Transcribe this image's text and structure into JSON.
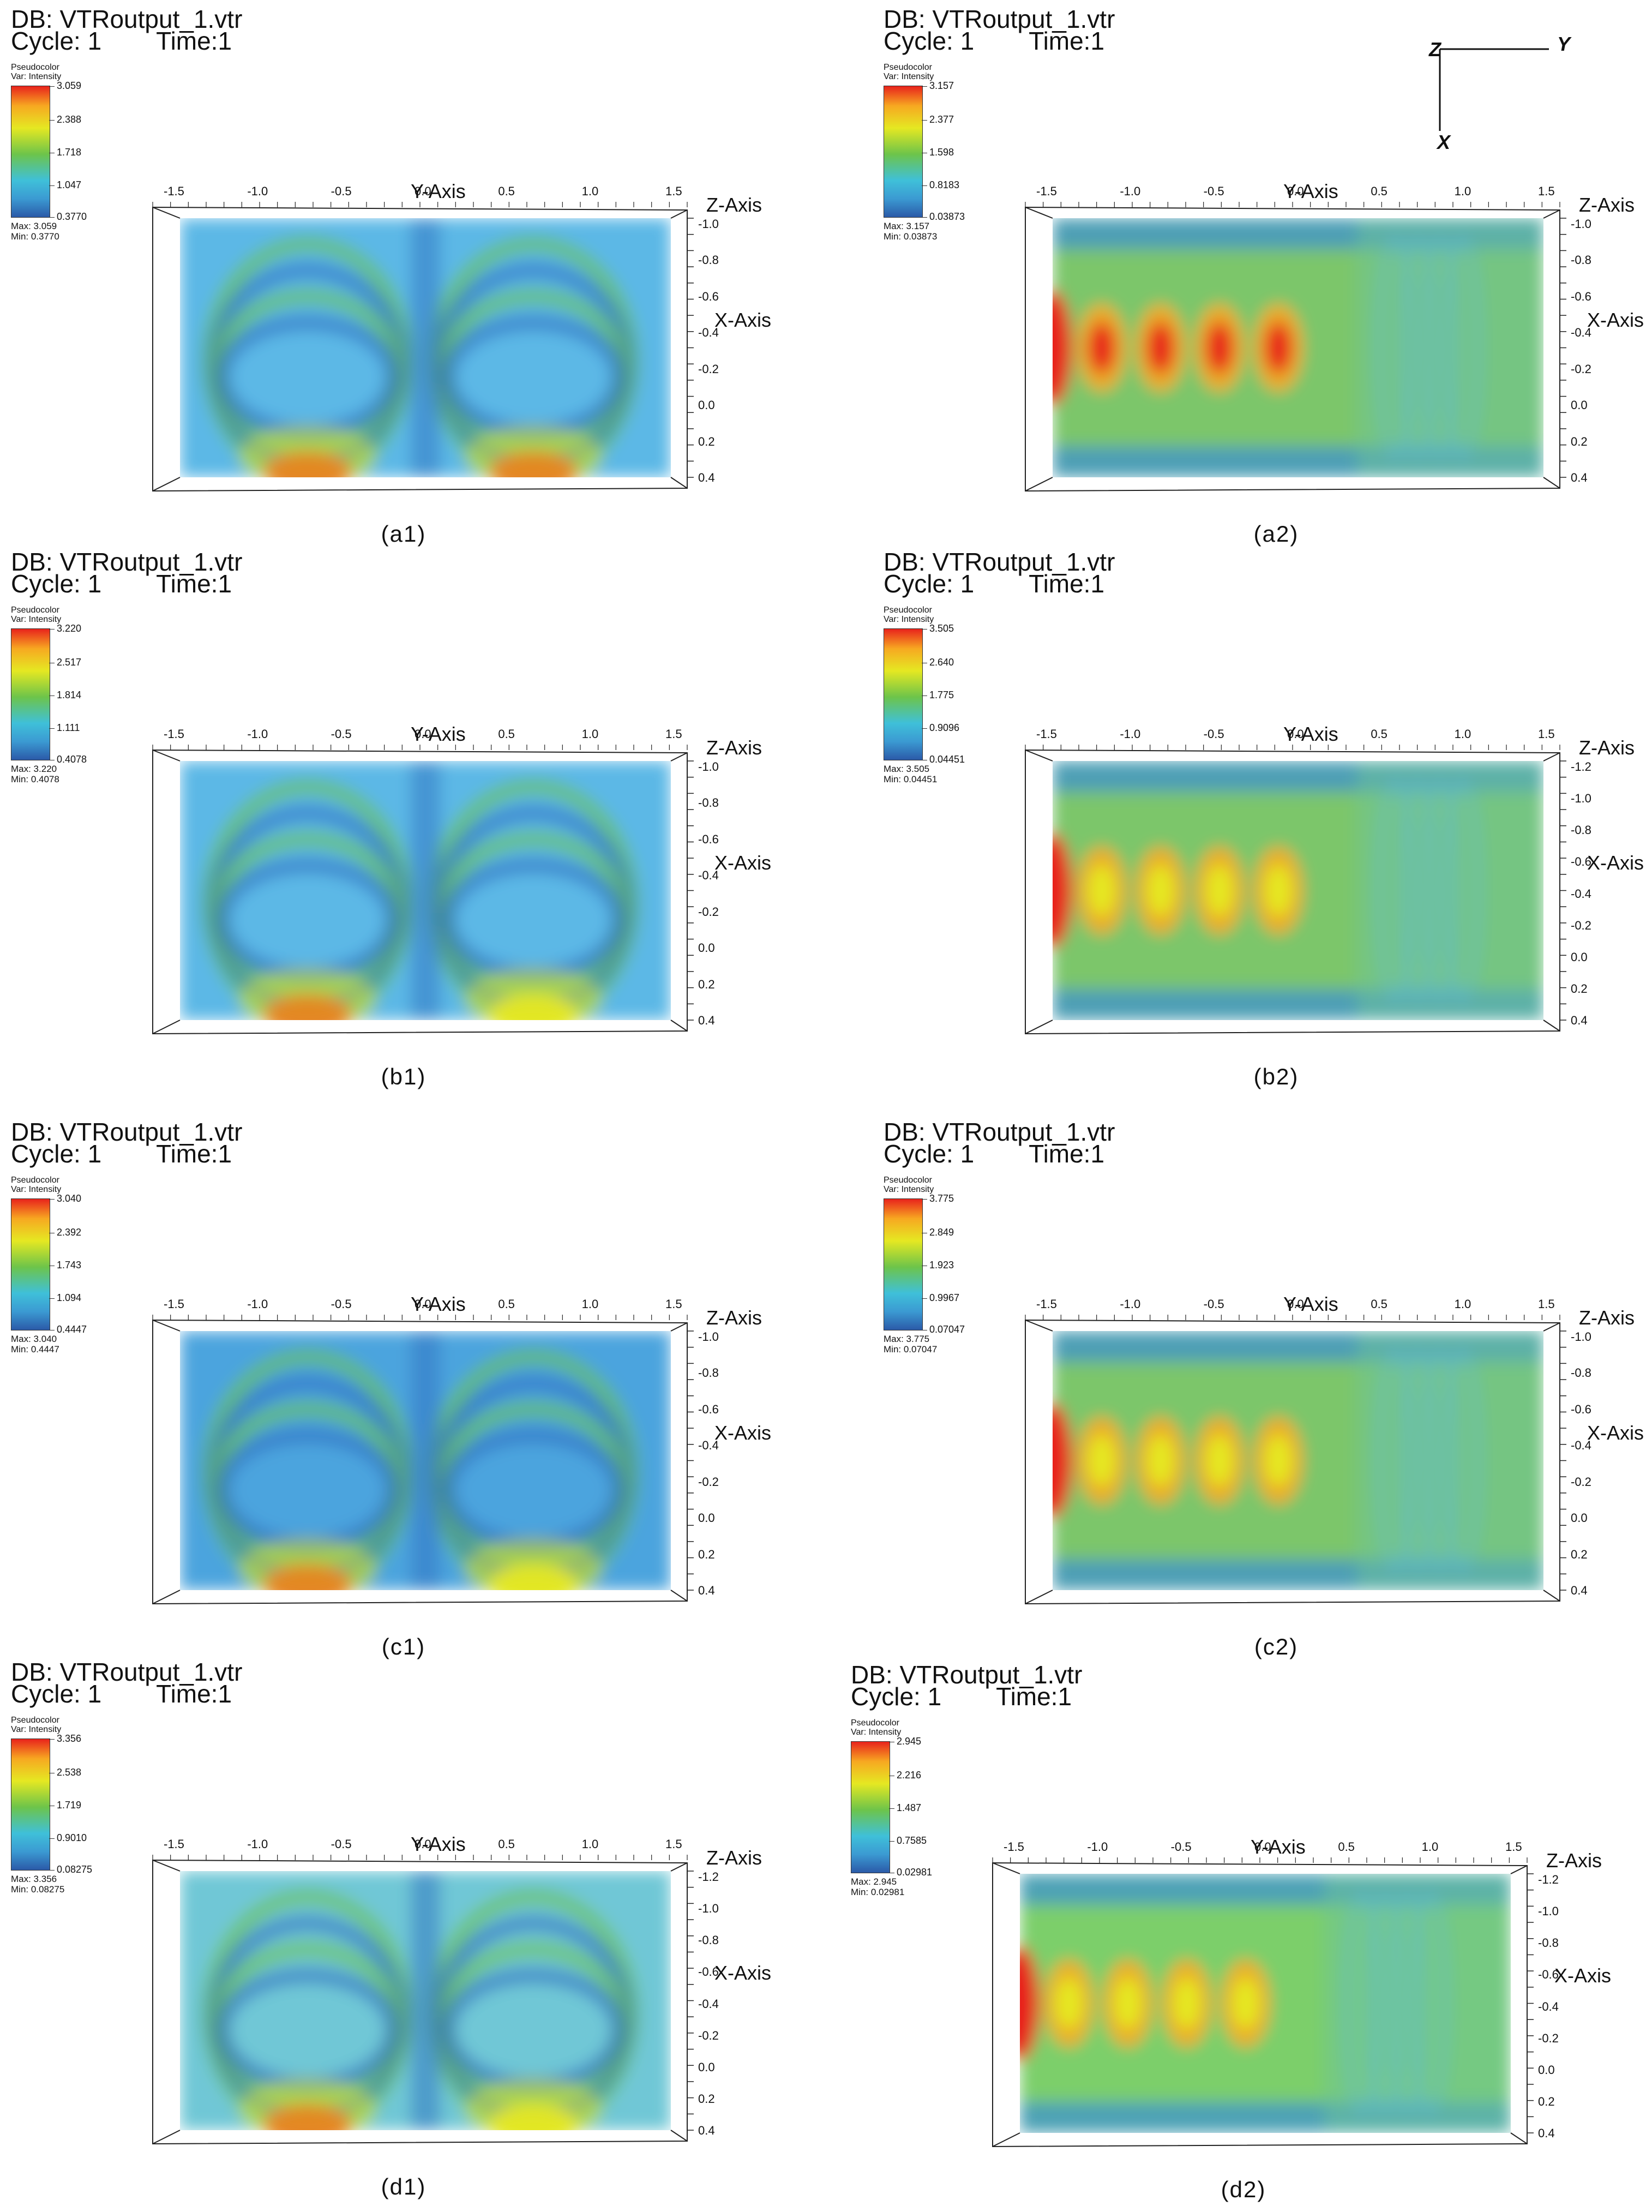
{
  "panels": [
    {
      "id": "a1",
      "db": "DB: VTRoutput_1.vtr",
      "cycle": "Cycle: 1",
      "time": "Time:1",
      "legend_title": "Pseudocolor",
      "legend_var": "Var: Intensity",
      "ticks": [
        "3.059",
        "2.388",
        "1.718",
        "1.047",
        "0.3770"
      ],
      "max": "Max: 3.059",
      "min": "Min: 0.3770",
      "caption": "(a1)",
      "y_axis": "Y-Axis",
      "x_axis": "X-Axis",
      "z_axis": "Z-Axis",
      "y_ticks": [
        "-1.5",
        "-1.0",
        "-0.5",
        "0.0",
        "0.5",
        "1.0",
        "1.5"
      ],
      "x_ticks": [
        "-1.0",
        "-0.8",
        "-0.6",
        "-0.4",
        "-0.2",
        "0.0",
        "0.2",
        "0.4"
      ]
    },
    {
      "id": "a2",
      "db": "DB: VTRoutput_1.vtr",
      "cycle": "Cycle: 1",
      "time": "Time:1",
      "legend_title": "Pseudocolor",
      "legend_var": "Var: Intensity",
      "ticks": [
        "3.157",
        "2.377",
        "1.598",
        "0.8183",
        "0.03873"
      ],
      "max": "Max: 3.157",
      "min": "Min: 0.03873",
      "caption": "(a2)",
      "y_axis": "Y-Axis",
      "x_axis": "X-Axis",
      "z_axis": "Z-Axis",
      "y_ticks": [
        "-1.5",
        "-1.0",
        "-0.5",
        "0.0",
        "0.5",
        "1.0",
        "1.5"
      ],
      "x_ticks": [
        "-1.0",
        "-0.8",
        "-0.6",
        "-0.4",
        "-0.2",
        "0.0",
        "0.2",
        "0.4"
      ]
    },
    {
      "id": "b1",
      "db": "DB: VTRoutput_1.vtr",
      "cycle": "Cycle: 1",
      "time": "Time:1",
      "legend_title": "Pseudocolor",
      "legend_var": "Var: Intensity",
      "ticks": [
        "3.220",
        "2.517",
        "1.814",
        "1.111",
        "0.4078"
      ],
      "max": "Max: 3.220",
      "min": "Min: 0.4078",
      "caption": "(b1)",
      "y_axis": "Y-Axis",
      "x_axis": "X-Axis",
      "z_axis": "Z-Axis",
      "y_ticks": [
        "-1.5",
        "-1.0",
        "-0.5",
        "0.0",
        "0.5",
        "1.0",
        "1.5"
      ],
      "x_ticks": [
        "-1.0",
        "-0.8",
        "-0.6",
        "-0.4",
        "-0.2",
        "0.0",
        "0.2",
        "0.4"
      ]
    },
    {
      "id": "b2",
      "db": "DB: VTRoutput_1.vtr",
      "cycle": "Cycle: 1",
      "time": "Time:1",
      "legend_title": "Pseudocolor",
      "legend_var": "Var: Intensity",
      "ticks": [
        "3.505",
        "2.640",
        "1.775",
        "0.9096",
        "0.04451"
      ],
      "max": "Max: 3.505",
      "min": "Min: 0.04451",
      "caption": "(b2)",
      "y_axis": "Y-Axis",
      "x_axis": "X-Axis",
      "z_axis": "Z-Axis",
      "y_ticks": [
        "-1.5",
        "-1.0",
        "-0.5",
        "0.0",
        "0.5",
        "1.0",
        "1.5"
      ],
      "x_ticks": [
        "-1.2",
        "-1.0",
        "-0.8",
        "-0.6",
        "-0.4",
        "-0.2",
        "0.0",
        "0.2",
        "0.4"
      ]
    },
    {
      "id": "c1",
      "db": "DB: VTRoutput_1.vtr",
      "cycle": "Cycle: 1",
      "time": "Time:1",
      "legend_title": "Pseudocolor",
      "legend_var": "Var: Intensity",
      "ticks": [
        "3.040",
        "2.392",
        "1.743",
        "1.094",
        "0.4447"
      ],
      "max": "Max: 3.040",
      "min": "Min: 0.4447",
      "caption": "(c1)",
      "y_axis": "Y-Axis",
      "x_axis": "X-Axis",
      "z_axis": "Z-Axis",
      "y_ticks": [
        "-1.5",
        "-1.0",
        "-0.5",
        "0.0",
        "0.5",
        "1.0",
        "1.5"
      ],
      "x_ticks": [
        "-1.0",
        "-0.8",
        "-0.6",
        "-0.4",
        "-0.2",
        "0.0",
        "0.2",
        "0.4"
      ]
    },
    {
      "id": "c2",
      "db": "DB: VTRoutput_1.vtr",
      "cycle": "Cycle: 1",
      "time": "Time:1",
      "legend_title": "Pseudocolor",
      "legend_var": "Var: Intensity",
      "ticks": [
        "3.775",
        "2.849",
        "1.923",
        "0.9967",
        "0.07047"
      ],
      "max": "Max: 3.775",
      "min": "Min: 0.07047",
      "caption": "(c2)",
      "y_axis": "Y-Axis",
      "x_axis": "X-Axis",
      "z_axis": "Z-Axis",
      "y_ticks": [
        "-1.5",
        "-1.0",
        "-0.5",
        "0.0",
        "0.5",
        "1.0",
        "1.5"
      ],
      "x_ticks": [
        "-1.0",
        "-0.8",
        "-0.6",
        "-0.4",
        "-0.2",
        "0.0",
        "0.2",
        "0.4"
      ]
    },
    {
      "id": "d1",
      "db": "DB: VTRoutput_1.vtr",
      "cycle": "Cycle: 1",
      "time": "Time:1",
      "legend_title": "Pseudocolor",
      "legend_var": "Var: Intensity",
      "ticks": [
        "3.356",
        "2.538",
        "1.719",
        "0.9010",
        "0.08275"
      ],
      "max": "Max: 3.356",
      "min": "Min: 0.08275",
      "caption": "(d1)",
      "y_axis": "Y-Axis",
      "x_axis": "X-Axis",
      "z_axis": "Z-Axis",
      "y_ticks": [
        "-1.5",
        "-1.0",
        "-0.5",
        "0.0",
        "0.5",
        "1.0",
        "1.5"
      ],
      "x_ticks": [
        "-1.2",
        "-1.0",
        "-0.8",
        "-0.6",
        "-0.4",
        "-0.2",
        "0.0",
        "0.2",
        "0.4"
      ]
    },
    {
      "id": "d2",
      "db": "DB: VTRoutput_1.vtr",
      "cycle": "Cycle: 1",
      "time": "Time:1",
      "legend_title": "Pseudocolor",
      "legend_var": "Var: Intensity",
      "ticks": [
        "2.945",
        "2.216",
        "1.487",
        "0.7585",
        "0.02981"
      ],
      "max": "Max: 2.945",
      "min": "Min: 0.02981",
      "caption": "(d2)",
      "y_axis": "Y-Axis",
      "x_axis": "X-Axis",
      "z_axis": "Z-Axis",
      "y_ticks": [
        "-1.5",
        "-1.0",
        "-0.5",
        "0.0",
        "0.5",
        "1.0",
        "1.5"
      ],
      "x_ticks": [
        "-1.2",
        "-1.0",
        "-0.8",
        "-0.6",
        "-0.4",
        "-0.2",
        "0.0",
        "0.2",
        "0.4"
      ]
    }
  ],
  "triad": {
    "z": "Z",
    "y": "Y",
    "x": "X"
  },
  "chart_data": [
    {
      "type": "heatmap",
      "id": "a1",
      "color_scale": [
        "#2b5aa8",
        "#3b9ad2",
        "#3fc0d9",
        "#6dc44a",
        "#e5e822",
        "#f7a821",
        "#e8231c"
      ],
      "xlim": [
        -1.5,
        1.5
      ],
      "ylim": [
        -1.2,
        0.4
      ],
      "vmin": 0.377,
      "vmax": 3.059
    },
    {
      "type": "heatmap",
      "id": "a2",
      "xlim": [
        -1.5,
        1.5
      ],
      "ylim": [
        -1.2,
        0.4
      ],
      "vmin": 0.03873,
      "vmax": 3.157
    },
    {
      "type": "heatmap",
      "id": "b1",
      "xlim": [
        -1.5,
        1.5
      ],
      "ylim": [
        -1.2,
        0.4
      ],
      "vmin": 0.4078,
      "vmax": 3.22
    },
    {
      "type": "heatmap",
      "id": "b2",
      "xlim": [
        -1.5,
        1.5
      ],
      "ylim": [
        -1.2,
        0.4
      ],
      "vmin": 0.04451,
      "vmax": 3.505
    },
    {
      "type": "heatmap",
      "id": "c1",
      "xlim": [
        -1.5,
        1.5
      ],
      "ylim": [
        -1.2,
        0.4
      ],
      "vmin": 0.4447,
      "vmax": 3.04
    },
    {
      "type": "heatmap",
      "id": "c2",
      "xlim": [
        -1.5,
        1.5
      ],
      "ylim": [
        -1.2,
        0.4
      ],
      "vmin": 0.07047,
      "vmax": 3.775
    },
    {
      "type": "heatmap",
      "id": "d1",
      "xlim": [
        -1.5,
        1.5
      ],
      "ylim": [
        -1.2,
        0.4
      ],
      "vmin": 0.08275,
      "vmax": 3.356
    },
    {
      "type": "heatmap",
      "id": "d2",
      "xlim": [
        -1.5,
        1.5
      ],
      "ylim": [
        -1.2,
        0.4
      ],
      "vmin": 0.02981,
      "vmax": 2.945
    }
  ]
}
